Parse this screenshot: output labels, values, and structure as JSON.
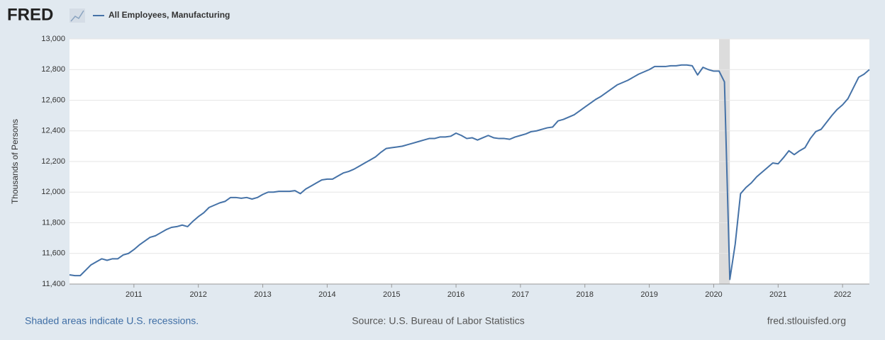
{
  "logo": "FRED",
  "chart_data": {
    "type": "line",
    "y_label": "Thousands of Persons",
    "x": [
      "2010-01",
      "2010-02",
      "2010-03",
      "2010-04",
      "2010-05",
      "2010-06",
      "2010-07",
      "2010-08",
      "2010-09",
      "2010-10",
      "2010-11",
      "2010-12",
      "2011-01",
      "2011-02",
      "2011-03",
      "2011-04",
      "2011-05",
      "2011-06",
      "2011-07",
      "2011-08",
      "2011-09",
      "2011-10",
      "2011-11",
      "2011-12",
      "2012-01",
      "2012-02",
      "2012-03",
      "2012-04",
      "2012-05",
      "2012-06",
      "2012-07",
      "2012-08",
      "2012-09",
      "2012-10",
      "2012-11",
      "2012-12",
      "2013-01",
      "2013-02",
      "2013-03",
      "2013-04",
      "2013-05",
      "2013-06",
      "2013-07",
      "2013-08",
      "2013-09",
      "2013-10",
      "2013-11",
      "2013-12",
      "2014-01",
      "2014-02",
      "2014-03",
      "2014-04",
      "2014-05",
      "2014-06",
      "2014-07",
      "2014-08",
      "2014-09",
      "2014-10",
      "2014-11",
      "2014-12",
      "2015-01",
      "2015-02",
      "2015-03",
      "2015-04",
      "2015-05",
      "2015-06",
      "2015-07",
      "2015-08",
      "2015-09",
      "2015-10",
      "2015-11",
      "2015-12",
      "2016-01",
      "2016-02",
      "2016-03",
      "2016-04",
      "2016-05",
      "2016-06",
      "2016-07",
      "2016-08",
      "2016-09",
      "2016-10",
      "2016-11",
      "2016-12",
      "2017-01",
      "2017-02",
      "2017-03",
      "2017-04",
      "2017-05",
      "2017-06",
      "2017-07",
      "2017-08",
      "2017-09",
      "2017-10",
      "2017-11",
      "2017-12",
      "2018-01",
      "2018-02",
      "2018-03",
      "2018-04",
      "2018-05",
      "2018-06",
      "2018-07",
      "2018-08",
      "2018-09",
      "2018-10",
      "2018-11",
      "2018-12",
      "2019-01",
      "2019-02",
      "2019-03",
      "2019-04",
      "2019-05",
      "2019-06",
      "2019-07",
      "2019-08",
      "2019-09",
      "2019-10",
      "2019-11",
      "2019-12",
      "2020-01",
      "2020-02",
      "2020-03",
      "2020-04",
      "2020-05",
      "2020-06",
      "2020-07",
      "2020-08",
      "2020-09",
      "2020-10",
      "2020-11",
      "2020-12",
      "2021-01",
      "2021-02",
      "2021-03",
      "2021-04",
      "2021-05",
      "2021-06",
      "2021-07",
      "2021-08",
      "2021-09",
      "2021-10",
      "2021-11",
      "2021-12",
      "2022-01",
      "2022-02",
      "2022-03",
      "2022-04",
      "2022-05",
      "2022-06"
    ],
    "series": [
      {
        "name": "All Employees, Manufacturing",
        "color": "#4572a7",
        "values": [
          11460,
          11455,
          11455,
          11490,
          11525,
          11545,
          11565,
          11555,
          11565,
          11565,
          11590,
          11600,
          11625,
          11655,
          11680,
          11705,
          11715,
          11735,
          11755,
          11770,
          11775,
          11785,
          11775,
          11810,
          11840,
          11865,
          11900,
          11915,
          11930,
          11940,
          11965,
          11965,
          11960,
          11965,
          11955,
          11965,
          11985,
          12000,
          12000,
          12005,
          12005,
          12005,
          12010,
          11990,
          12020,
          12040,
          12060,
          12080,
          12085,
          12085,
          12105,
          12125,
          12135,
          12150,
          12170,
          12190,
          12210,
          12230,
          12260,
          12285,
          12290,
          12295,
          12300,
          12310,
          12320,
          12330,
          12340,
          12350,
          12350,
          12360,
          12360,
          12365,
          12385,
          12370,
          12350,
          12355,
          12340,
          12355,
          12370,
          12355,
          12350,
          12350,
          12345,
          12360,
          12370,
          12380,
          12395,
          12400,
          12410,
          12420,
          12425,
          12465,
          12475,
          12490,
          12505,
          12530,
          12555,
          12580,
          12605,
          12625,
          12650,
          12675,
          12700,
          12715,
          12730,
          12750,
          12770,
          12785,
          12800,
          12820,
          12820,
          12820,
          12825,
          12825,
          12830,
          12830,
          12825,
          12765,
          12815,
          12800,
          12790,
          12790,
          12720,
          11430,
          11660,
          11990,
          12030,
          12060,
          12100,
          12130,
          12160,
          12190,
          12185,
          12225,
          12270,
          12245,
          12270,
          12290,
          12350,
          12395,
          12410,
          12455,
          12500,
          12540,
          12570,
          12610,
          12680,
          12750,
          12770,
          12800
        ]
      }
    ],
    "recessions": [
      [
        "2020-02",
        "2020-04"
      ]
    ],
    "xlim": [
      "2010-01",
      "2022-06"
    ],
    "xticks": [
      2011,
      2012,
      2013,
      2014,
      2015,
      2016,
      2017,
      2018,
      2019,
      2020,
      2021,
      2022
    ],
    "ylim": [
      11400,
      13000
    ],
    "yticks": [
      {
        "value": 11400,
        "label": "11,400"
      },
      {
        "value": 11600,
        "label": "11,600"
      },
      {
        "value": 11800,
        "label": "11,800"
      },
      {
        "value": 12000,
        "label": "12,000"
      },
      {
        "value": 12200,
        "label": "12,200"
      },
      {
        "value": 12400,
        "label": "12,400"
      },
      {
        "value": 12600,
        "label": "12,600"
      },
      {
        "value": 12800,
        "label": "12,800"
      },
      {
        "value": 13000,
        "label": "13,000"
      }
    ],
    "grid": true,
    "recession_note": "Shaded areas indicate U.S. recessions.",
    "source": "Source: U.S. Bureau of Labor Statistics",
    "site": "fred.stlouisfed.org"
  }
}
